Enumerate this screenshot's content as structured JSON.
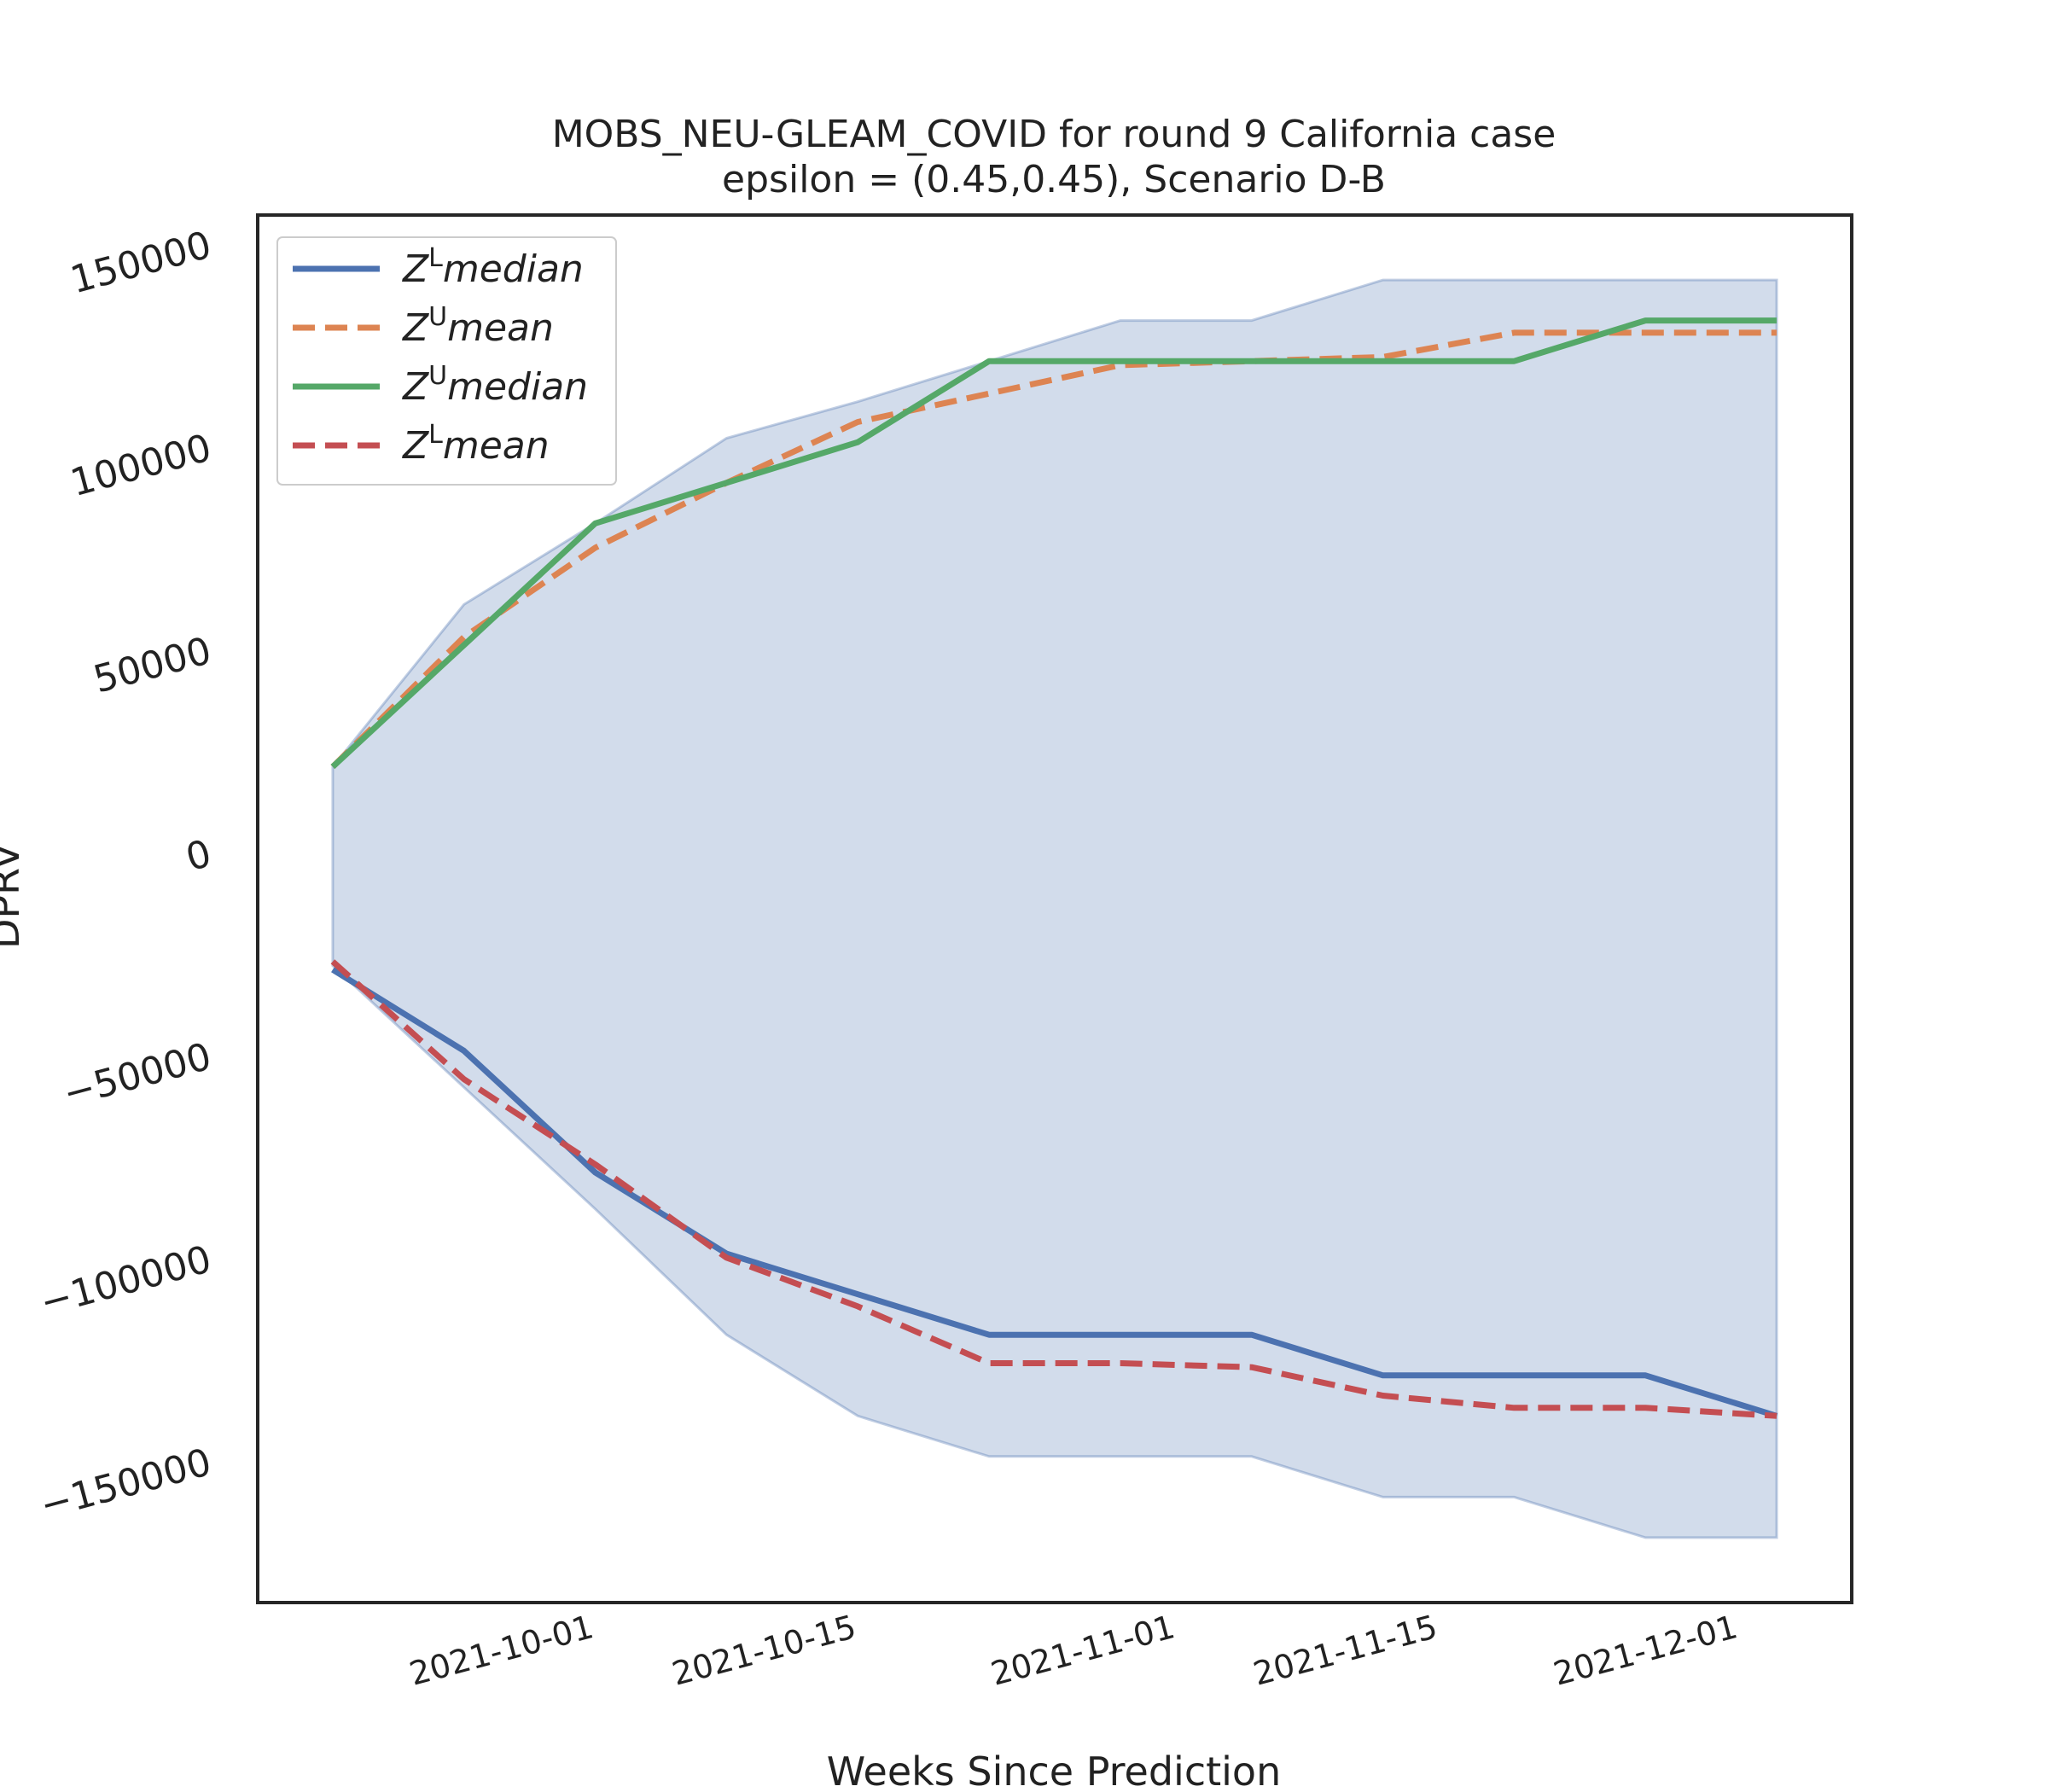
{
  "chart_data": {
    "type": "line",
    "title": "MOBS_NEU-GLEAM_COVID for round 9 California  case",
    "subtitle": "epsilon = (0.45,0.45), Scenario D-B",
    "xlabel": "Weeks Since Prediction",
    "ylabel": "DPRV",
    "x": [
      "2021-09-18",
      "2021-09-25",
      "2021-10-02",
      "2021-10-09",
      "2021-10-16",
      "2021-10-23",
      "2021-10-30",
      "2021-11-06",
      "2021-11-13",
      "2021-11-20",
      "2021-11-27",
      "2021-12-04"
    ],
    "x_range": [
      "2021-09-14",
      "2021-12-08"
    ],
    "x_ticks": [
      "2021-10-01",
      "2021-10-15",
      "2021-11-01",
      "2021-11-15",
      "2021-12-01"
    ],
    "y_ticks": [
      150000,
      100000,
      50000,
      0,
      -50000,
      -100000,
      -150000
    ],
    "y_tick_labels": [
      "150000",
      "100000",
      "50000",
      "0",
      "−50000",
      "−100000",
      "−150000"
    ],
    "ylim": [
      -185000,
      157000
    ],
    "grid": false,
    "legend_position": "top-left",
    "band": {
      "upper": [
        21000,
        61000,
        81000,
        102000,
        111000,
        121000,
        131000,
        131000,
        141000,
        141000,
        141000,
        141000
      ],
      "lower": [
        -28000,
        -58000,
        -88000,
        -119000,
        -139000,
        -149000,
        -149000,
        -149000,
        -159000,
        -159000,
        -169000,
        -169000
      ],
      "color": "#4c72b0"
    },
    "series": [
      {
        "name": "median",
        "sup": "L",
        "color": "#4c72b0",
        "dashed": false,
        "values": [
          -29000,
          -49000,
          -79000,
          -99000,
          -109000,
          -119000,
          -119000,
          -119000,
          -129000,
          -129000,
          -129000,
          -139000
        ]
      },
      {
        "name": "mean",
        "sup": "U",
        "color": "#dd8452",
        "dashed": true,
        "values": [
          21000,
          53000,
          75000,
          91000,
          106000,
          113000,
          120000,
          121000,
          122000,
          128000,
          128000,
          128000
        ]
      },
      {
        "name": "median",
        "sup": "U",
        "color": "#55a868",
        "dashed": false,
        "values": [
          21000,
          51000,
          81000,
          91000,
          101000,
          121000,
          121000,
          121000,
          121000,
          121000,
          131000,
          131000
        ]
      },
      {
        "name": "mean",
        "sup": "L",
        "color": "#c44e52",
        "dashed": true,
        "values": [
          -27000,
          -56000,
          -77000,
          -100000,
          -112000,
          -126000,
          -126000,
          -127000,
          -134000,
          -137000,
          -137000,
          -139000
        ]
      }
    ]
  }
}
